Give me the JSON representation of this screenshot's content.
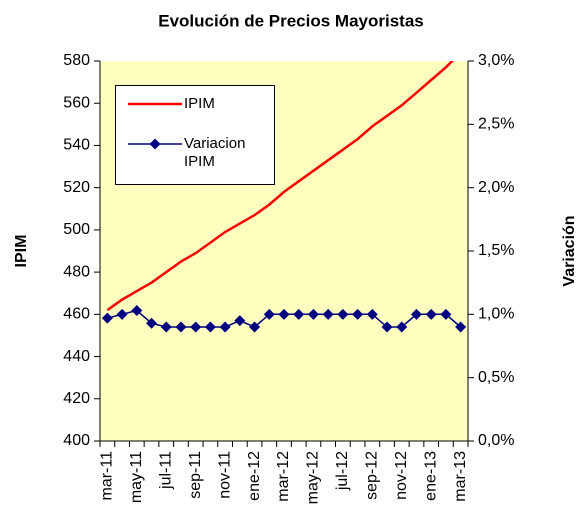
{
  "chart_data": {
    "type": "line",
    "title": "Evolución de Precios Mayoristas",
    "y_label": "IPIM",
    "y2_label": "Variación",
    "categories": [
      "mar-11",
      null,
      "may-11",
      null,
      "jul-11",
      null,
      "sep-11",
      null,
      "nov-11",
      null,
      "ene-12",
      null,
      "mar-12",
      null,
      "may-12",
      null,
      "jul-12",
      null,
      "sep-12",
      null,
      "nov-12",
      null,
      "ene-13",
      null,
      "mar-13"
    ],
    "series": [
      {
        "name": "IPIM",
        "color": "#ff0000",
        "values": [
          462,
          467,
          471,
          475,
          480,
          485,
          489,
          494,
          499,
          503,
          507,
          512,
          518,
          523,
          528,
          533,
          538,
          543,
          549,
          554,
          559,
          565,
          571,
          577,
          584
        ]
      },
      {
        "name": "Variacion IPIM",
        "color": "#000080",
        "axis": "y2",
        "values": [
          0.97,
          1.0,
          1.03,
          0.93,
          0.9,
          0.9,
          0.9,
          0.9,
          0.9,
          0.95,
          0.9,
          1.0,
          1.0,
          1.0,
          1.0,
          1.0,
          1.0,
          1.0,
          1.0,
          0.9,
          0.9,
          1.0,
          1.0,
          1.0,
          0.9
        ]
      }
    ],
    "ylim": [
      400,
      580
    ],
    "yticks": [
      400,
      420,
      440,
      460,
      480,
      500,
      520,
      540,
      560,
      580
    ],
    "y2lim": [
      0,
      3
    ],
    "y2ticks": [
      {
        "value": 0,
        "label": "0,0%"
      },
      {
        "value": 0.5,
        "label": "0,5%"
      },
      {
        "value": 1,
        "label": "1,0%"
      },
      {
        "value": 1.5,
        "label": "1,5%"
      },
      {
        "value": 2,
        "label": "2,0%"
      },
      {
        "value": 2.5,
        "label": "2,5%"
      },
      {
        "value": 3,
        "label": "3,0%"
      }
    ],
    "grid": false,
    "legend": "upper-left",
    "background": "#ffffc0"
  }
}
